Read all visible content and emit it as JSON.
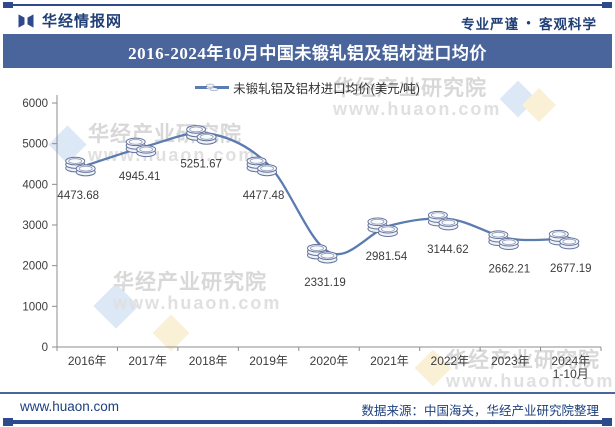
{
  "header": {
    "logo_text": "华经情报网",
    "slogan_left": "专业严谨",
    "slogan_bullet": "●",
    "slogan_right": "客观科学"
  },
  "title": "2016-2024年10月中国未锻轧铝及铝材进口均价",
  "legend": {
    "label": "未锻轧铝及铝材进口均价(美元/吨)"
  },
  "chart_data": {
    "type": "line",
    "title": "2016-2024年10月中国未锻轧铝及铝材进口均价",
    "series_name": "未锻轧铝及铝材进口均价(美元/吨)",
    "categories": [
      "2016年",
      "2017年",
      "2018年",
      "2019年",
      "2020年",
      "2021年",
      "2022年",
      "2023年",
      "2024年\n1-10月"
    ],
    "values": [
      4473.68,
      4945.41,
      5251.67,
      4477.48,
      2331.19,
      2981.54,
      3144.62,
      2662.21,
      2677.19
    ],
    "ylim": [
      0,
      6000
    ],
    "yticks": [
      0,
      1000,
      2000,
      3000,
      4000,
      5000,
      6000
    ],
    "grid": false,
    "legend_position": "top",
    "marker": "coin-stack-icon",
    "line_color": "#5b7cb0"
  },
  "watermark": {
    "line1": "华经产业研究院",
    "line2": "www.huaon.com"
  },
  "footer": {
    "site": "www.huaon.com",
    "source": "数据来源：中国海关，华经产业研究院整理"
  },
  "colors": {
    "banner_bg": "#4a659c",
    "accent_dark": "#2e4a8c",
    "navy_text": "#1d3f7e",
    "line": "#5b7cb0",
    "axis": "#8c8c8c",
    "coin_stroke": "#64749c",
    "coin_fill": "#f2f4f9",
    "watermark_text": "#d8d8d8",
    "diamond_blue": "#dce8f6",
    "diamond_yellow": "#faf0d6"
  }
}
